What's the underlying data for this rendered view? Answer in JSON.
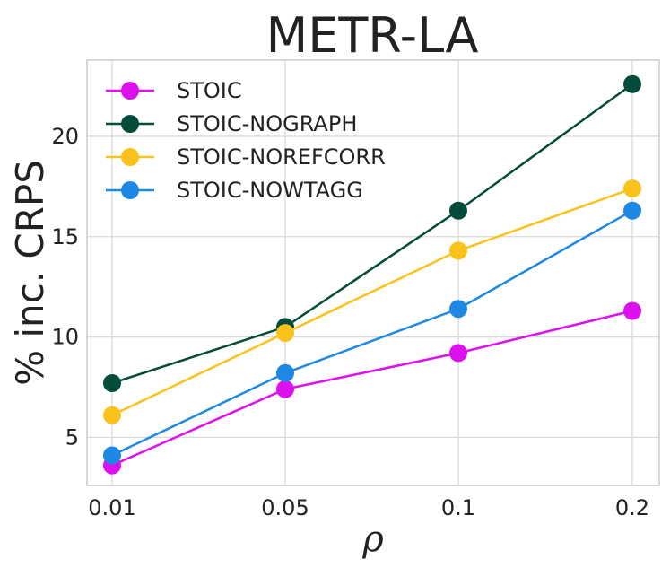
{
  "chart_data": {
    "type": "line",
    "title": "METR-LA",
    "xlabel": "ρ",
    "ylabel": "% inc. CRPS",
    "categories": [
      "0.01",
      "0.05",
      "0.1",
      "0.2"
    ],
    "ylim": [
      2.6,
      23.8
    ],
    "yticks": [
      "5",
      "10",
      "15",
      "20"
    ],
    "grid": true,
    "legend_position": "top-left",
    "series": [
      {
        "name": "STOIC",
        "color": "#dd11ee",
        "values": [
          3.6,
          7.4,
          9.2,
          11.3
        ]
      },
      {
        "name": "STOIC-NOGRAPH",
        "color": "#044c3a",
        "values": [
          7.7,
          10.5,
          16.3,
          22.6
        ]
      },
      {
        "name": "STOIC-NOREFCORR",
        "color": "#fbc21b",
        "values": [
          6.1,
          10.2,
          14.3,
          17.4
        ]
      },
      {
        "name": "STOIC-NOWTAGG",
        "color": "#1e88e5",
        "values": [
          4.1,
          8.2,
          11.4,
          16.3
        ]
      }
    ]
  }
}
